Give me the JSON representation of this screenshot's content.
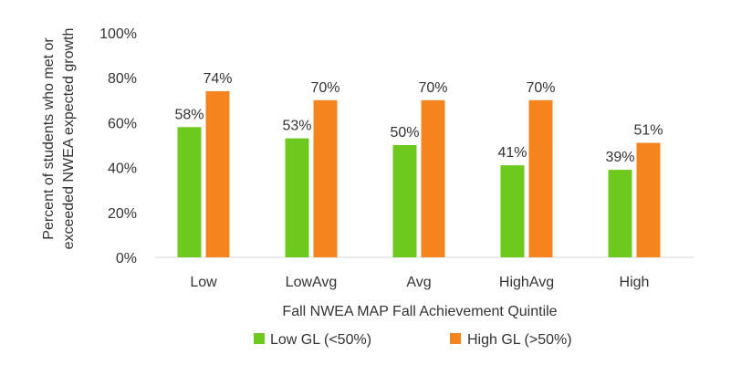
{
  "chart_data": {
    "type": "bar",
    "categories": [
      "Low",
      "LowAvg",
      "Avg",
      "HighAvg",
      "High"
    ],
    "series": [
      {
        "name": "Low GL (<50%)",
        "values": [
          58,
          53,
          50,
          41,
          39
        ],
        "labels": [
          "58%",
          "53%",
          "50%",
          "41%",
          "39%"
        ],
        "color": "#6DC91E"
      },
      {
        "name": "High GL (>50%)",
        "values": [
          74,
          70,
          70,
          70,
          51
        ],
        "labels": [
          "74%",
          "70%",
          "70%",
          "70%",
          "51%"
        ],
        "color": "#F5841F"
      }
    ],
    "title": "",
    "xlabel": "Fall NWEA MAP Fall Achievement Quintile",
    "ylabel_lines": [
      "Percent of students who met or",
      "exceeded NWEA expected growth"
    ],
    "ylim": [
      0,
      100
    ],
    "yticks": [
      0,
      20,
      40,
      60,
      80,
      100
    ],
    "ytick_labels": [
      "0%",
      "20%",
      "40%",
      "60%",
      "80%",
      "100%"
    ],
    "grid": false,
    "legend_position": "bottom"
  }
}
